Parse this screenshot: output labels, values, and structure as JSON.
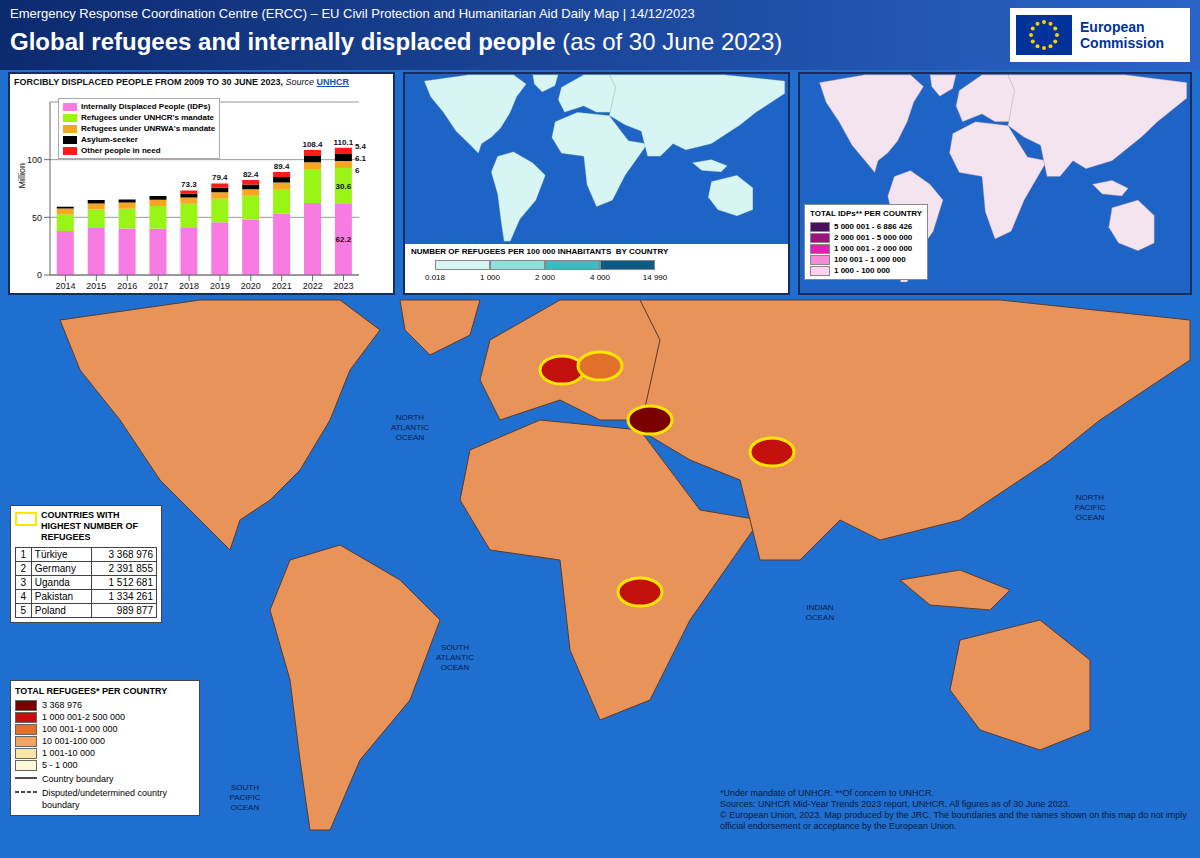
{
  "header": {
    "subtitle": "Emergency Response Coordination Centre (ERCC) – EU Civil Protection and Humanitarian Aid Daily Map | 14/12/2023",
    "title": "Global refugees and internally displaced people",
    "title_suffix": "(as of 30 June 2023)",
    "logo": "European Commission"
  },
  "chart_data": {
    "type": "bar",
    "title": "FORCIBLY DISPLACED PEOPLE FROM 2009 TO 30 JUNE 2023,",
    "source_label": "Source",
    "source": "UNHCR",
    "y_label": "Million",
    "stacked": true,
    "grid": true,
    "categories": [
      "2014",
      "2015",
      "2016",
      "2017",
      "2018",
      "2019",
      "2020",
      "2021",
      "2022",
      "2023"
    ],
    "ylim": [
      0,
      150
    ],
    "yticks": [
      0,
      50,
      100
    ],
    "totals": [
      59.2,
      65,
      65.5,
      68.4,
      73.3,
      79.4,
      82.4,
      89.4,
      108.4,
      110.1
    ],
    "series": [
      {
        "name": "Internally Displaced People (IDPs)",
        "color": "#f77be0",
        "values": [
          38.2,
          40.8,
          40.3,
          40.0,
          41.3,
          45.7,
          48.0,
          53.2,
          62.5,
          62.2
        ],
        "value_labels": [
          null,
          null,
          null,
          null,
          null,
          null,
          null,
          null,
          null,
          "62.2"
        ]
      },
      {
        "name": "Refugees under UNHCR's mandate",
        "color": "#99f516",
        "values": [
          14.4,
          16.1,
          17.2,
          19.9,
          20.4,
          20.4,
          20.7,
          21.3,
          29.4,
          30.6
        ],
        "value_labels": [
          null,
          null,
          null,
          null,
          null,
          null,
          null,
          null,
          null,
          "30.6"
        ]
      },
      {
        "name": "Refugees under UNRWA's mandate",
        "color": "#f5a623",
        "values": [
          5.1,
          5.2,
          5.3,
          5.4,
          5.5,
          5.6,
          5.7,
          5.8,
          5.9,
          6
        ],
        "value_labels": [
          null,
          null,
          null,
          null,
          null,
          null,
          null,
          null,
          null,
          "6"
        ]
      },
      {
        "name": "Asylum-seeker",
        "color": "#000000",
        "values": [
          1.5,
          2.9,
          2.7,
          3.1,
          3.5,
          4.1,
          4.1,
          4.6,
          5.4,
          6.1
        ],
        "value_labels": [
          null,
          null,
          null,
          null,
          null,
          null,
          null,
          null,
          null,
          "6.1"
        ]
      },
      {
        "name": "Other people in need",
        "color": "#ff1a1a",
        "values": [
          0,
          0,
          0,
          0,
          2.6,
          3.6,
          3.9,
          4.5,
          5.2,
          5.4
        ],
        "value_labels": [
          null,
          null,
          null,
          null,
          null,
          null,
          null,
          null,
          null,
          "5.4"
        ]
      }
    ]
  },
  "per_capita_map": {
    "legend_title": "NUMBER OF REFUGEES PER 100 000 INHABITANTS  BY COUNTRY",
    "colors": [
      "#d6f5f3",
      "#8fe0dc",
      "#3fb8c0",
      "#0e5a84"
    ],
    "ticks": [
      {
        "value": 0.018,
        "label": "0.018"
      },
      {
        "value": 1000,
        "label": "1 000"
      },
      {
        "value": 2000,
        "label": "2 000"
      },
      {
        "value": 4000,
        "label": "4 000"
      },
      {
        "value": 14990,
        "label": "14 990"
      }
    ]
  },
  "idp_map": {
    "legend_title": "TOTAL IDPs** PER COUNTRY",
    "classes": [
      {
        "label": "5 000 001 - 6 886 426",
        "min": 5000001,
        "max": 6886426,
        "color": "#4a0f5c"
      },
      {
        "label": "2 000 001 - 5 000 000",
        "min": 2000001,
        "max": 5000000,
        "color": "#9c1380"
      },
      {
        "label": "1 000 001 - 2 000 000",
        "min": 1000001,
        "max": 2000000,
        "color": "#e21fb4"
      },
      {
        "label": "100 001 - 1 000 000",
        "min": 100001,
        "max": 1000000,
        "color": "#f58ad6"
      },
      {
        "label": "1 000 - 100 000",
        "min": 1000,
        "max": 100000,
        "color": "#fbd3ef"
      }
    ]
  },
  "refugee_map": {
    "ocean_labels": [
      "NORTH ATLANTIC OCEAN",
      "SOUTH ATLANTIC OCEAN",
      "INDIAN OCEAN",
      "NORTH PACIFIC OCEAN",
      "SOUTH PACIFIC OCEAN"
    ],
    "top_title": "COUNTRIES WITH HIGHEST NUMBER OF REFUGEES",
    "top_countries": [
      {
        "rank": 1,
        "country": "Türkiye",
        "refugees": 3368976,
        "refugees_label": "3 368 976"
      },
      {
        "rank": 2,
        "country": "Germany",
        "refugees": 2391855,
        "refugees_label": "2 391 855"
      },
      {
        "rank": 3,
        "country": "Uganda",
        "refugees": 1512681,
        "refugees_label": "1 512 681"
      },
      {
        "rank": 4,
        "country": "Pakistan",
        "refugees": 1334261,
        "refugees_label": "1 334 261"
      },
      {
        "rank": 5,
        "country": "Poland",
        "refugees": 989877,
        "refugees_label": "989 877"
      }
    ],
    "legend_title": "TOTAL REFUGEES* PER COUNTRY",
    "classes": [
      {
        "label": "3 368 976",
        "min": 3368976,
        "max": 3368976,
        "color": "#7a0000"
      },
      {
        "label": "1 000 001-2 500 000",
        "min": 1000001,
        "max": 2500000,
        "color": "#c40f0f"
      },
      {
        "label": "100 001-1 000 000",
        "min": 100001,
        "max": 1000000,
        "color": "#e0702a"
      },
      {
        "label": "10 001-100 000",
        "min": 10001,
        "max": 100000,
        "color": "#f4a460"
      },
      {
        "label": "1 001-10 000",
        "min": 1001,
        "max": 10000,
        "color": "#fde4a8"
      },
      {
        "label": "5 - 1 000",
        "min": 5,
        "max": 1000,
        "color": "#fff8d8"
      }
    ],
    "boundaries": [
      "Country boundary",
      "Disputed/undetermined country boundary"
    ]
  },
  "footer": {
    "notes": "*Under mandate of UNHCR. **Of concern to UNHCR.",
    "sources": "Sources: UNHCR Mid-Year Trends 2023 report, UNHCR. All figures as of 30 June 2023.",
    "copyright": "© European Union, 2023. Map produced by the JRC. The boundaries and the names shown on this map do not imply official endorsement or acceptance by the European Union."
  }
}
